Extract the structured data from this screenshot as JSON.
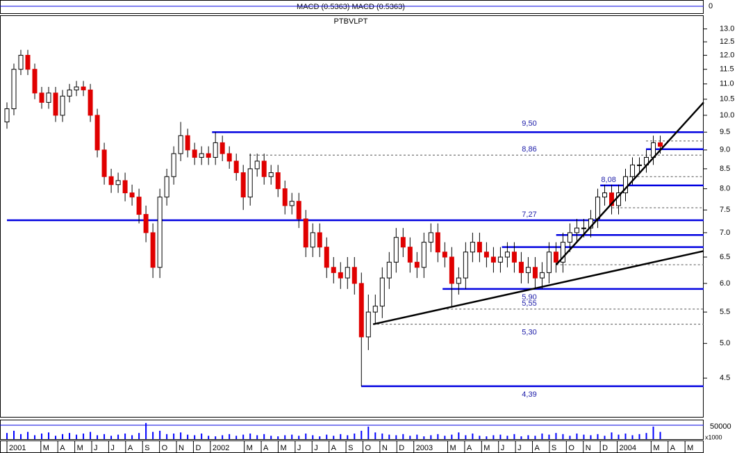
{
  "chart_data": [
    {
      "type": "line",
      "title": "MACD (0.5363) MACD (0.5363)",
      "yticks": [
        0
      ]
    },
    {
      "type": "candlestick",
      "title": "PTBVLPT",
      "log_scale": true,
      "up_color": "#ffffff",
      "down_color": "#e00000",
      "xlim": [
        0,
        41.1
      ],
      "ylim": [
        4.0,
        13.55
      ],
      "yticks": [
        4.5,
        {
          "value": 5,
          "label": "5.0"
        },
        5.5,
        {
          "value": 6,
          "label": "6.0"
        },
        6.5,
        {
          "value": 7,
          "label": "7.0"
        },
        7.5,
        {
          "value": 8,
          "label": "8.0"
        },
        8.5,
        {
          "value": 9,
          "label": "9.0"
        },
        9.5,
        {
          "value": 10,
          "label": "10.0"
        },
        10.5,
        {
          "value": 11,
          "label": "11.0"
        },
        11.5,
        {
          "value": 12,
          "label": "12.0"
        },
        12.5,
        {
          "value": 13,
          "label": "13.0"
        }
      ],
      "xticks": [
        {
          "value": 0,
          "label": "2001"
        },
        {
          "value": 2,
          "label": "M"
        },
        {
          "value": 3,
          "label": "A"
        },
        {
          "value": 4,
          "label": "M"
        },
        {
          "value": 5,
          "label": "J"
        },
        {
          "value": 6,
          "label": "J"
        },
        {
          "value": 7,
          "label": "A"
        },
        {
          "value": 8,
          "label": "S"
        },
        {
          "value": 9,
          "label": "O"
        },
        {
          "value": 10,
          "label": "N"
        },
        {
          "value": 11,
          "label": "D"
        },
        {
          "value": 12,
          "label": "2002"
        },
        {
          "value": 14,
          "label": "M"
        },
        {
          "value": 15,
          "label": "A"
        },
        {
          "value": 16,
          "label": "M"
        },
        {
          "value": 17,
          "label": "J"
        },
        {
          "value": 18,
          "label": "J"
        },
        {
          "value": 19,
          "label": "A"
        },
        {
          "value": 20,
          "label": "S"
        },
        {
          "value": 21,
          "label": "O"
        },
        {
          "value": 22,
          "label": "N"
        },
        {
          "value": 23,
          "label": "D"
        },
        {
          "value": 24,
          "label": "2003"
        },
        {
          "value": 26,
          "label": "M"
        },
        {
          "value": 27,
          "label": "A"
        },
        {
          "value": 28,
          "label": "M"
        },
        {
          "value": 29,
          "label": "J"
        },
        {
          "value": 30,
          "label": "J"
        },
        {
          "value": 31,
          "label": "A"
        },
        {
          "value": 32,
          "label": "S"
        },
        {
          "value": 33,
          "label": "O"
        },
        {
          "value": 34,
          "label": "N"
        },
        {
          "value": 35,
          "label": "D"
        },
        {
          "value": 36,
          "label": "2004"
        },
        {
          "value": 38,
          "label": "M"
        },
        {
          "value": 39,
          "label": "A"
        },
        {
          "value": 40,
          "label": "M"
        }
      ],
      "x": [
        0,
        0.41,
        0.82,
        1.23,
        1.64,
        2.05,
        2.46,
        2.87,
        3.28,
        3.69,
        4.1,
        4.51,
        4.92,
        5.33,
        5.74,
        6.15,
        6.56,
        6.97,
        7.38,
        7.79,
        8.2,
        8.61,
        9.02,
        9.43,
        9.84,
        10.25,
        10.66,
        11.07,
        11.48,
        11.89,
        12.3,
        12.71,
        13.12,
        13.53,
        13.94,
        14.35,
        14.76,
        15.17,
        15.58,
        15.99,
        16.4,
        16.81,
        17.22,
        17.63,
        18.04,
        18.45,
        18.86,
        19.27,
        19.68,
        20.09,
        20.5,
        20.91,
        21.32,
        21.73,
        22.14,
        22.55,
        22.96,
        23.37,
        23.78,
        24.19,
        24.6,
        25.01,
        25.42,
        25.83,
        26.24,
        26.65,
        27.06,
        27.47,
        27.88,
        28.29,
        28.7,
        29.11,
        29.52,
        29.93,
        30.34,
        30.75,
        31.16,
        31.57,
        31.98,
        32.39,
        32.8,
        33.21,
        33.62,
        34.03,
        34.44,
        34.85,
        35.26,
        35.67,
        36.08,
        36.49,
        36.9,
        37.31,
        37.72,
        38.13,
        38.54
      ],
      "open": [
        9.8,
        10.2,
        11.5,
        12.0,
        11.5,
        10.7,
        10.4,
        10.7,
        10.0,
        10.6,
        10.8,
        10.9,
        10.8,
        10.0,
        9.0,
        8.3,
        8.1,
        8.2,
        7.9,
        7.8,
        7.4,
        7.0,
        6.3,
        7.8,
        8.3,
        8.9,
        9.4,
        9.0,
        8.8,
        8.9,
        8.8,
        9.2,
        8.9,
        8.7,
        8.4,
        7.8,
        8.5,
        8.7,
        8.3,
        8.4,
        8.0,
        7.6,
        7.7,
        7.3,
        6.7,
        7.0,
        6.7,
        6.3,
        6.2,
        6.1,
        6.3,
        6.0,
        5.1,
        5.5,
        5.6,
        6.1,
        6.4,
        6.9,
        6.7,
        6.4,
        6.3,
        6.8,
        7.0,
        6.6,
        6.5,
        6.0,
        6.1,
        6.6,
        6.8,
        6.6,
        6.5,
        6.4,
        6.5,
        6.6,
        6.4,
        6.2,
        6.3,
        6.1,
        6.2,
        6.6,
        6.4,
        6.8,
        7.0,
        7.1,
        7.1,
        7.3,
        7.8,
        7.9,
        7.6,
        7.9,
        8.3,
        8.6,
        8.6,
        8.8,
        9.2
      ],
      "high": [
        10.4,
        11.7,
        12.2,
        12.2,
        11.7,
        10.9,
        10.9,
        10.9,
        10.8,
        11.0,
        11.1,
        11.1,
        11.0,
        10.2,
        9.2,
        8.5,
        8.4,
        8.4,
        8.1,
        8.0,
        7.6,
        7.2,
        8.0,
        8.5,
        9.1,
        9.8,
        9.6,
        9.2,
        9.1,
        9.1,
        9.5,
        9.4,
        9.1,
        8.9,
        8.6,
        8.9,
        8.9,
        8.9,
        8.6,
        8.6,
        8.2,
        7.9,
        7.9,
        7.5,
        7.2,
        7.2,
        6.9,
        6.5,
        6.4,
        6.5,
        6.5,
        6.2,
        5.8,
        5.8,
        6.3,
        6.6,
        7.1,
        7.1,
        6.9,
        6.6,
        7.0,
        7.2,
        7.2,
        6.8,
        6.7,
        6.3,
        6.8,
        7.0,
        7.0,
        6.8,
        6.7,
        6.7,
        6.8,
        6.8,
        6.6,
        6.5,
        6.5,
        6.4,
        6.8,
        6.8,
        7.0,
        7.2,
        7.3,
        7.3,
        7.5,
        8.0,
        8.1,
        8.1,
        8.1,
        8.5,
        8.8,
        8.8,
        9.0,
        9.4,
        9.4
      ],
      "low": [
        9.6,
        10.0,
        11.3,
        11.3,
        10.5,
        10.2,
        10.2,
        9.8,
        9.8,
        10.4,
        10.6,
        10.6,
        9.8,
        8.8,
        8.1,
        7.9,
        7.9,
        7.7,
        7.6,
        7.2,
        6.8,
        6.1,
        6.1,
        7.6,
        8.1,
        8.7,
        8.8,
        8.6,
        8.6,
        8.6,
        8.6,
        8.7,
        8.5,
        8.2,
        7.5,
        7.6,
        8.3,
        8.1,
        8.1,
        7.8,
        7.4,
        7.4,
        7.1,
        6.5,
        6.5,
        6.5,
        6.1,
        6.0,
        5.9,
        5.9,
        5.8,
        4.39,
        4.9,
        5.3,
        5.4,
        5.9,
        6.2,
        6.5,
        6.2,
        6.1,
        6.1,
        6.6,
        6.4,
        6.3,
        5.6,
        5.8,
        5.9,
        6.4,
        6.4,
        6.3,
        6.2,
        6.2,
        6.3,
        6.2,
        6.0,
        6.0,
        5.9,
        5.9,
        6.0,
        6.2,
        6.2,
        6.6,
        6.8,
        6.9,
        6.9,
        7.1,
        7.6,
        7.4,
        7.4,
        7.7,
        8.1,
        8.4,
        8.4,
        8.6,
        8.9
      ],
      "close": [
        10.2,
        11.5,
        12.0,
        11.5,
        10.7,
        10.4,
        10.7,
        10.0,
        10.6,
        10.8,
        10.9,
        10.8,
        10.0,
        9.0,
        8.3,
        8.1,
        8.2,
        7.9,
        7.8,
        7.4,
        7.0,
        6.3,
        7.8,
        8.3,
        8.9,
        9.4,
        9.0,
        8.8,
        8.9,
        8.8,
        9.2,
        8.9,
        8.7,
        8.4,
        7.8,
        8.5,
        8.7,
        8.3,
        8.4,
        8.0,
        7.6,
        7.7,
        7.3,
        6.7,
        7.0,
        6.7,
        6.3,
        6.2,
        6.1,
        6.3,
        6.0,
        5.1,
        5.5,
        5.6,
        6.1,
        6.4,
        6.9,
        6.7,
        6.4,
        6.3,
        6.8,
        7.0,
        6.6,
        6.5,
        6.0,
        6.1,
        6.6,
        6.8,
        6.6,
        6.5,
        6.4,
        6.5,
        6.6,
        6.4,
        6.2,
        6.3,
        6.1,
        6.2,
        6.6,
        6.4,
        6.8,
        7.0,
        7.1,
        7.1,
        7.3,
        7.8,
        7.9,
        7.6,
        7.9,
        8.3,
        8.6,
        8.6,
        8.8,
        9.2,
        9.1
      ],
      "level_color": "#0000e0",
      "levels": [
        {
          "value": 9.5,
          "label": "9,50",
          "from": 12.1,
          "dashed": false
        },
        {
          "value": 8.86,
          "label": "8,86",
          "from": 14.3,
          "dashed": true
        },
        {
          "value": 8.08,
          "label": "8,08",
          "from": 35.0,
          "dashed": false
        },
        {
          "value": 7.27,
          "label": "7,27",
          "from": 0,
          "dashed": false
        },
        {
          "value": 5.9,
          "label": "5,90",
          "from": 25.7,
          "dashed": false
        },
        {
          "value": 5.55,
          "label": "5,55",
          "from": 25.7,
          "dashed": true
        },
        {
          "value": 5.3,
          "label": "5,30",
          "from": 21.6,
          "dashed": true
        },
        {
          "value": 4.39,
          "label": "4,39",
          "from": 20.9,
          "dashed": false
        },
        {
          "value": 6.95,
          "from": 32.4,
          "dashed": false
        },
        {
          "value": 6.7,
          "from": 29.2,
          "dashed": false
        },
        {
          "value": 9.25,
          "from": 37.7,
          "dashed": true
        },
        {
          "value": 9.02,
          "from": 37.7,
          "dashed": false
        },
        {
          "value": 8.3,
          "from": 36.7,
          "dashed": true
        },
        {
          "value": 7.55,
          "from": 35.7,
          "dashed": true
        },
        {
          "value": 6.35,
          "from": 32.4,
          "dashed": true
        }
      ],
      "trendlines": [
        {
          "x": [
            21.6,
            41.1
          ],
          "y": [
            5.3,
            6.62
          ]
        },
        {
          "x": [
            32.4,
            41.1
          ],
          "y": [
            6.35,
            10.4
          ]
        }
      ]
    },
    {
      "type": "bar",
      "color": "#0000ff",
      "unit_label": "x1000",
      "ylim": [
        0,
        70000
      ],
      "yticks": [
        50000
      ],
      "values": [
        22000,
        30000,
        18000,
        26000,
        14000,
        20000,
        24000,
        12000,
        18000,
        22000,
        16000,
        20000,
        26000,
        14000,
        18000,
        12000,
        16000,
        20000,
        14000,
        22000,
        58000,
        26000,
        30000,
        18000,
        20000,
        24000,
        16000,
        14000,
        20000,
        12000,
        10000,
        14000,
        18000,
        12000,
        16000,
        20000,
        14000,
        18000,
        12000,
        10000,
        14000,
        16000,
        12000,
        20000,
        14000,
        10000,
        16000,
        12000,
        18000,
        14000,
        20000,
        30000,
        45000,
        24000,
        20000,
        16000,
        14000,
        18000,
        12000,
        16000,
        10000,
        14000,
        18000,
        12000,
        16000,
        24000,
        14000,
        20000,
        12000,
        10000,
        14000,
        16000,
        12000,
        18000,
        10000,
        14000,
        12000,
        20000,
        16000,
        22000,
        18000,
        12000,
        20000,
        16000,
        14000,
        18000,
        12000,
        24000,
        16000,
        20000,
        14000,
        18000,
        22000,
        45000,
        26000
      ]
    }
  ]
}
